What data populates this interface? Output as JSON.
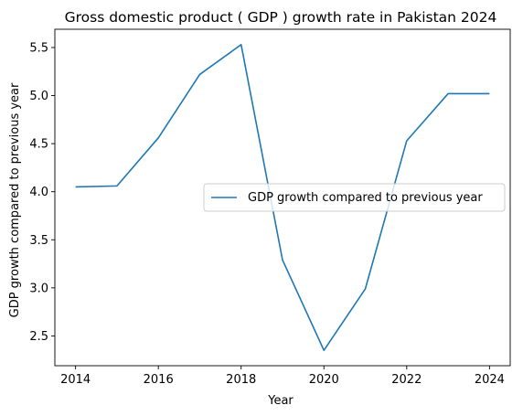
{
  "chart_data": {
    "type": "line",
    "title": "Gross domestic product ( GDP ) growth rate in Pakistan 2024",
    "xlabel": "Year",
    "ylabel": "GDP growth compared to previous year",
    "x": [
      2014,
      2015,
      2016,
      2017,
      2018,
      2019,
      2020,
      2021,
      2022,
      2023,
      2024
    ],
    "series": [
      {
        "name": "GDP growth compared to previous year",
        "values": [
          4.05,
          4.06,
          4.56,
          5.22,
          5.53,
          3.29,
          2.35,
          2.99,
          4.53,
          5.02,
          5.02
        ],
        "color": "#1f77b4"
      }
    ],
    "xticks": [
      "2014",
      "2016",
      "2018",
      "2020",
      "2022",
      "2024"
    ],
    "yticks": [
      "2.5",
      "3.0",
      "3.5",
      "4.0",
      "4.5",
      "5.0",
      "5.5"
    ],
    "xlim": [
      2013.5,
      2024.5
    ],
    "ylim": [
      2.19,
      5.69
    ],
    "grid": false,
    "legend_position": "center-right"
  }
}
